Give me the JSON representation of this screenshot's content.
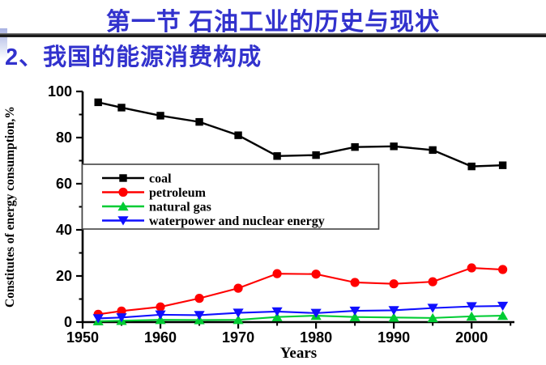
{
  "header": {
    "title": "第一节 石油工业的历史与现状",
    "subtitle": "2、我国的能源消费构成",
    "title_color": "#3232CD"
  },
  "chart_data": {
    "type": "line",
    "title": "",
    "xlabel": "Years",
    "ylabel": "Constitutes of energy consumption,%",
    "x": [
      1952,
      1955,
      1960,
      1965,
      1970,
      1975,
      1980,
      1985,
      1990,
      1995,
      2000,
      2004
    ],
    "series": [
      {
        "name": "coal",
        "color": "#000000",
        "marker": "square",
        "values": [
          95.3,
          93.0,
          89.5,
          86.8,
          81.0,
          72.0,
          72.4,
          75.9,
          76.2,
          74.6,
          67.5,
          68.0
        ]
      },
      {
        "name": "petroleum",
        "color": "#FF0000",
        "marker": "circle",
        "values": [
          3.4,
          4.8,
          6.6,
          10.3,
          14.7,
          21.0,
          20.8,
          17.2,
          16.6,
          17.5,
          23.5,
          22.8
        ]
      },
      {
        "name": "natural gas",
        "color": "#00CC33",
        "marker": "triangle-up",
        "values": [
          0.4,
          0.6,
          1.0,
          0.9,
          1.0,
          2.2,
          2.8,
          2.2,
          2.0,
          1.8,
          2.5,
          2.8
        ]
      },
      {
        "name": "waterpower and nuclear energy",
        "color": "#0F0FFF",
        "marker": "triangle-down",
        "values": [
          1.6,
          2.0,
          3.2,
          3.0,
          4.0,
          4.6,
          3.9,
          4.9,
          5.1,
          6.1,
          6.8,
          7.0
        ]
      }
    ],
    "xlim": [
      1950,
      2005.5
    ],
    "ylim": [
      0,
      100
    ],
    "x_major_ticks": [
      1950,
      1960,
      1970,
      1980,
      1990,
      2000
    ],
    "x_minor_ticks": [
      1955,
      1965,
      1975,
      1985,
      1995,
      2005
    ],
    "y_major_ticks": [
      0,
      20,
      40,
      60,
      80,
      100
    ],
    "y_minor_ticks": [
      10,
      30,
      50,
      70,
      90
    ],
    "grid": false,
    "legend_position": "inside-middle-left",
    "legend_border": true
  }
}
